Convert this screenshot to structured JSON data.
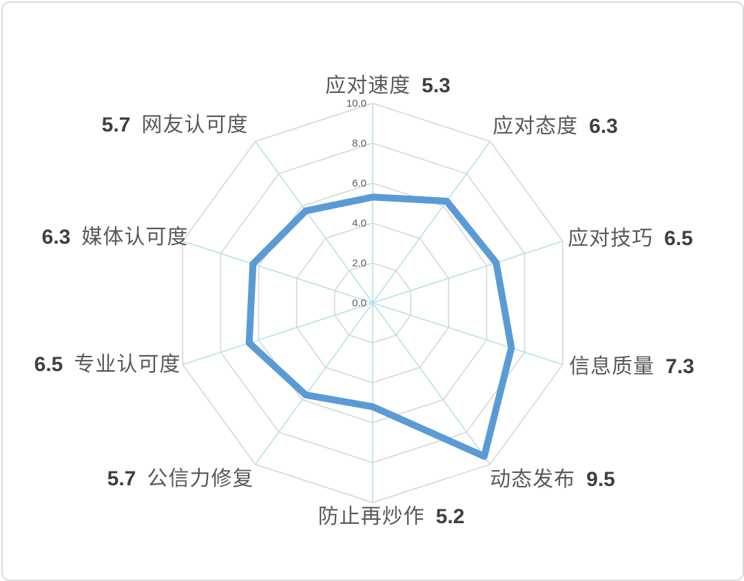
{
  "chart_data": {
    "type": "radar",
    "title": "",
    "categories": [
      "应对速度",
      "应对态度",
      "应对技巧",
      "信息质量",
      "动态发布",
      "防止再炒作",
      "公信力修复",
      "专业认可度",
      "媒体认可度",
      "网友认可度"
    ],
    "values": [
      5.3,
      6.3,
      6.5,
      7.3,
      9.5,
      5.2,
      5.7,
      6.5,
      6.3,
      5.7
    ],
    "value_labels": [
      "5.3",
      "6.3",
      "6.5",
      "7.3",
      "9.5",
      "5.2",
      "5.7",
      "6.5",
      "6.3",
      "5.7"
    ],
    "value_first": [
      false,
      false,
      false,
      false,
      false,
      false,
      true,
      true,
      true,
      true
    ],
    "tick_labels": [
      "0.0",
      "2.0",
      "4.0",
      "6.0",
      "8.0",
      "10.0"
    ],
    "tick_values": [
      0,
      2,
      4,
      6,
      8,
      10
    ],
    "rmin": 0,
    "rmax": 10,
    "ring_step": 2,
    "axes_count": 10,
    "grid_shape": "polygon",
    "grid_on": true,
    "legend_position": "none",
    "colors": {
      "series": "#5b9bd5",
      "ring": "#d6d6d6",
      "spoke": "#b6e1ea",
      "category_label": "#595959",
      "value_label": "#3f3f3f",
      "tick_label": "#595959",
      "card_border": "#d9d9d9",
      "background": "#ffffff"
    }
  }
}
